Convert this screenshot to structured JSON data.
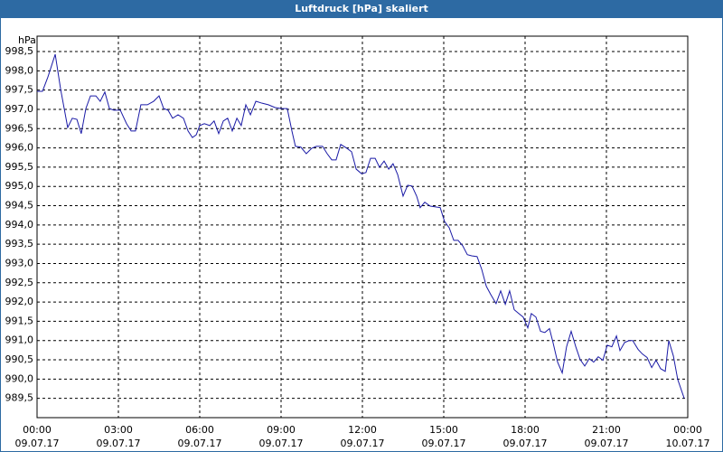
{
  "chart_data": {
    "type": "line",
    "title": "Luftdruck [hPa] skaliert",
    "y_unit": "hPa",
    "x": [
      0,
      0.2,
      0.4,
      0.67,
      0.87,
      1.13,
      1.3,
      1.47,
      1.63,
      1.8,
      1.97,
      2.17,
      2.33,
      2.5,
      2.67,
      2.83,
      3.07,
      3.3,
      3.47,
      3.63,
      3.83,
      4.07,
      4.3,
      4.5,
      4.67,
      4.83,
      5,
      5.2,
      5.4,
      5.57,
      5.73,
      5.87,
      6,
      6.17,
      6.37,
      6.53,
      6.7,
      6.87,
      7.03,
      7.2,
      7.37,
      7.53,
      7.7,
      7.87,
      8.07,
      8.3,
      8.53,
      8.77,
      9,
      9.23,
      9.4,
      9.53,
      9.73,
      9.93,
      10.13,
      10.3,
      10.53,
      10.7,
      10.87,
      11.03,
      11.2,
      11.43,
      11.6,
      11.77,
      11.97,
      12.13,
      12.3,
      12.47,
      12.63,
      12.8,
      12.97,
      13.13,
      13.3,
      13.5,
      13.67,
      13.83,
      14,
      14.13,
      14.3,
      14.5,
      14.7,
      14.87,
      15.03,
      15.2,
      15.37,
      15.53,
      15.7,
      15.87,
      16.03,
      16.23,
      16.4,
      16.57,
      16.73,
      16.93,
      17.1,
      17.27,
      17.43,
      17.6,
      17.77,
      17.93,
      18.1,
      18.23,
      18.4,
      18.57,
      18.73,
      18.9,
      19.03,
      19.2,
      19.37,
      19.53,
      19.7,
      19.87,
      20.03,
      20.2,
      20.37,
      20.53,
      20.7,
      20.87,
      21.03,
      21.2,
      21.37,
      21.5,
      21.67,
      21.83,
      21.97,
      22.17,
      22.33,
      22.5,
      22.67,
      22.83,
      23,
      23.17,
      23.3,
      23.47,
      23.63,
      23.87
    ],
    "series": [
      {
        "color": "#1a1aa6",
        "values": [
          997.47,
          997.47,
          997.84,
          998.43,
          997.52,
          996.53,
          996.77,
          996.74,
          996.37,
          997.02,
          997.35,
          997.35,
          997.21,
          997.45,
          997.02,
          996.98,
          996.98,
          996.63,
          996.44,
          996.44,
          997.12,
          997.12,
          997.21,
          997.35,
          997.02,
          996.98,
          996.77,
          996.86,
          996.77,
          996.44,
          996.27,
          996.34,
          996.58,
          996.63,
          996.58,
          996.7,
          996.37,
          996.7,
          996.77,
          996.44,
          996.77,
          996.58,
          997.12,
          996.86,
          997.21,
          997.16,
          997.12,
          997.05,
          997.02,
          997.02,
          996.44,
          996.04,
          996.02,
          995.85,
          995.99,
          996.04,
          996.04,
          995.85,
          995.69,
          995.69,
          996.09,
          995.99,
          995.9,
          995.45,
          995.33,
          995.36,
          995.73,
          995.73,
          995.5,
          995.66,
          995.45,
          995.59,
          995.31,
          994.75,
          995.03,
          995.01,
          994.75,
          994.45,
          994.59,
          994.49,
          994.47,
          994.45,
          994.09,
          993.93,
          993.6,
          993.6,
          993.46,
          993.23,
          993.2,
          993.18,
          992.85,
          992.41,
          992.2,
          991.96,
          992.29,
          991.94,
          992.29,
          991.8,
          991.7,
          991.61,
          991.33,
          991.7,
          991.61,
          991.24,
          991.21,
          991.31,
          990.95,
          990.44,
          990.16,
          990.84,
          991.24,
          990.84,
          990.51,
          990.34,
          990.53,
          990.44,
          990.58,
          990.49,
          990.88,
          990.84,
          991.12,
          990.74,
          990.95,
          991.0,
          991.0,
          990.77,
          990.65,
          990.56,
          990.3,
          990.49,
          990.27,
          990.2,
          991.0,
          990.6,
          989.99,
          989.5
        ]
      }
    ],
    "xlim": [
      0,
      24
    ],
    "xticks": [
      {
        "value": 0,
        "label": "00:00",
        "date": "09.07.17"
      },
      {
        "value": 3,
        "label": "03:00",
        "date": "09.07.17"
      },
      {
        "value": 6,
        "label": "06:00",
        "date": "09.07.17"
      },
      {
        "value": 9,
        "label": "09:00",
        "date": "09.07.17"
      },
      {
        "value": 12,
        "label": "12:00",
        "date": "09.07.17"
      },
      {
        "value": 15,
        "label": "15:00",
        "date": "09.07.17"
      },
      {
        "value": 18,
        "label": "18:00",
        "date": "09.07.17"
      },
      {
        "value": 21,
        "label": "21:00",
        "date": "09.07.17"
      },
      {
        "value": 24,
        "label": "00:00",
        "date": "10.07.17"
      }
    ],
    "ylim": [
      989.0,
      998.9
    ],
    "yticks": [
      {
        "value": 989.5,
        "label": "989,5"
      },
      {
        "value": 990,
        "label": "990,0"
      },
      {
        "value": 990.5,
        "label": "990,5"
      },
      {
        "value": 991,
        "label": "991,0"
      },
      {
        "value": 991.5,
        "label": "991,5"
      },
      {
        "value": 992,
        "label": "992,0"
      },
      {
        "value": 992.5,
        "label": "992,5"
      },
      {
        "value": 993,
        "label": "993,0"
      },
      {
        "value": 993.5,
        "label": "993,5"
      },
      {
        "value": 994,
        "label": "994,0"
      },
      {
        "value": 994.5,
        "label": "994,5"
      },
      {
        "value": 995,
        "label": "995,0"
      },
      {
        "value": 995.5,
        "label": "995,5"
      },
      {
        "value": 996,
        "label": "996,0"
      },
      {
        "value": 996.5,
        "label": "996,5"
      },
      {
        "value": 997,
        "label": "997,0"
      },
      {
        "value": 997.5,
        "label": "997,5"
      },
      {
        "value": 998,
        "label": "998,0"
      },
      {
        "value": 998.5,
        "label": "998,5"
      }
    ],
    "grid": true
  }
}
